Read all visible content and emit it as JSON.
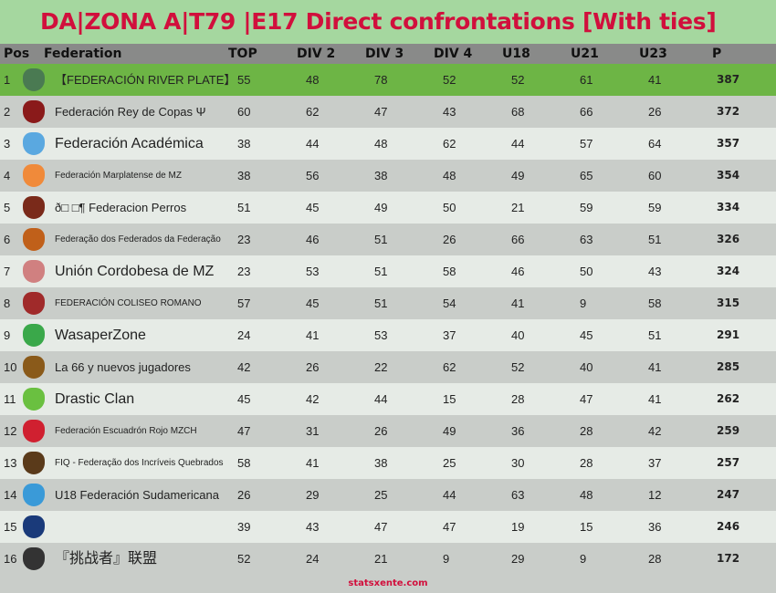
{
  "title": "DA|ZONA A|T79 |E17 Direct confrontations [With ties]",
  "columns": [
    "Pos",
    "Federation",
    "TOP",
    "DIV 2",
    "DIV 3",
    "DIV 4",
    "U18",
    "U21",
    "U23",
    "P"
  ],
  "rows": [
    {
      "pos": "1",
      "name": "【FEDERACIÓN RIVER PLATE】",
      "top": "55",
      "div2": "48",
      "div3": "78",
      "div4": "52",
      "u18": "52",
      "u21": "61",
      "u23": "41",
      "p": "387",
      "logo_color": "#4a7a52"
    },
    {
      "pos": "2",
      "name": "Federación Rey de Copas Ψ",
      "top": "60",
      "div2": "62",
      "div3": "47",
      "div4": "43",
      "u18": "68",
      "u21": "66",
      "u23": "26",
      "p": "372",
      "logo_color": "#8a1a1a"
    },
    {
      "pos": "3",
      "name": "Federación Académica",
      "top": "38",
      "div2": "44",
      "div3": "48",
      "div4": "62",
      "u18": "44",
      "u21": "57",
      "u23": "64",
      "p": "357",
      "logo_color": "#5aa8e0"
    },
    {
      "pos": "4",
      "name": "Federación Marplatense de MZ",
      "top": "38",
      "div2": "56",
      "div3": "38",
      "div4": "48",
      "u18": "49",
      "u21": "65",
      "u23": "60",
      "p": "354",
      "logo_color": "#f08a3a"
    },
    {
      "pos": "5",
      "name": "ð□ □¶ Federacion Perros",
      "top": "51",
      "div2": "45",
      "div3": "49",
      "div4": "50",
      "u18": "21",
      "u21": "59",
      "u23": "59",
      "p": "334",
      "logo_color": "#7a2a1a"
    },
    {
      "pos": "6",
      "name": "Federação dos Federados da Federação",
      "top": "23",
      "div2": "46",
      "div3": "51",
      "div4": "26",
      "u18": "66",
      "u21": "63",
      "u23": "51",
      "p": "326",
      "logo_color": "#c0601a"
    },
    {
      "pos": "7",
      "name": "Unión Cordobesa de MZ",
      "top": "23",
      "div2": "53",
      "div3": "51",
      "div4": "58",
      "u18": "46",
      "u21": "50",
      "u23": "43",
      "p": "324",
      "logo_color": "#d08080"
    },
    {
      "pos": "8",
      "name": "FEDERACIÓN COLISEO ROMANO",
      "top": "57",
      "div2": "45",
      "div3": "51",
      "div4": "54",
      "u18": "41",
      "u21": "9",
      "u23": "58",
      "p": "315",
      "logo_color": "#a02a2a"
    },
    {
      "pos": "9",
      "name": "WasaperZone",
      "top": "24",
      "div2": "41",
      "div3": "53",
      "div4": "37",
      "u18": "40",
      "u21": "45",
      "u23": "51",
      "p": "291",
      "logo_color": "#3aa84a"
    },
    {
      "pos": "10",
      "name": "La 66 y nuevos jugadores",
      "top": "42",
      "div2": "26",
      "div3": "22",
      "div4": "62",
      "u18": "52",
      "u21": "40",
      "u23": "41",
      "p": "285",
      "logo_color": "#8a5a1a"
    },
    {
      "pos": "11",
      "name": "Drastic Clan",
      "top": "45",
      "div2": "42",
      "div3": "44",
      "div4": "15",
      "u18": "28",
      "u21": "47",
      "u23": "41",
      "p": "262",
      "logo_color": "#6ac040"
    },
    {
      "pos": "12",
      "name": "Federación Escuadrón Rojo MZCH",
      "top": "47",
      "div2": "31",
      "div3": "26",
      "div4": "49",
      "u18": "36",
      "u21": "28",
      "u23": "42",
      "p": "259",
      "logo_color": "#d02030"
    },
    {
      "pos": "13",
      "name": "FIQ - Federação dos Incríveis Quebrados",
      "top": "58",
      "div2": "41",
      "div3": "38",
      "div4": "25",
      "u18": "30",
      "u21": "28",
      "u23": "37",
      "p": "257",
      "logo_color": "#5a3a1a"
    },
    {
      "pos": "14",
      "name": "U18 Federación Sudamericana",
      "top": "26",
      "div2": "29",
      "div3": "25",
      "div4": "44",
      "u18": "63",
      "u21": "48",
      "u23": "12",
      "p": "247",
      "logo_color": "#3a9ad8"
    },
    {
      "pos": "15",
      "name": "",
      "top": "39",
      "div2": "43",
      "div3": "47",
      "div4": "47",
      "u18": "19",
      "u21": "15",
      "u23": "36",
      "p": "246",
      "logo_color": "#1a3a7a"
    },
    {
      "pos": "16",
      "name": "『挑战者』联盟",
      "top": "52",
      "div2": "24",
      "div3": "21",
      "div4": "9",
      "u18": "29",
      "u21": "9",
      "u23": "28",
      "p": "172",
      "logo_color": "#333333"
    }
  ],
  "footer": "statsxente.com"
}
